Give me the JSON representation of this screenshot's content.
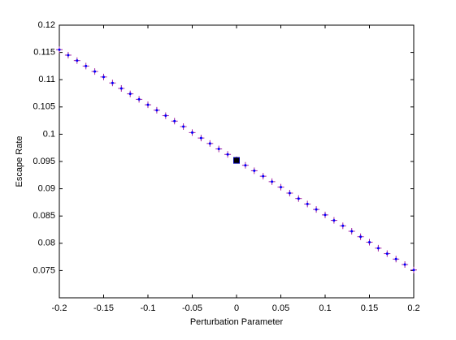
{
  "chart_data": {
    "type": "scatter",
    "xlabel": "Perturbation Parameter",
    "ylabel": "Escape Rate",
    "xlim": [
      -0.2,
      0.2
    ],
    "ylim": [
      0.07,
      0.12
    ],
    "xticks": [
      -0.2,
      -0.15,
      -0.1,
      -0.05,
      0,
      0.05,
      0.1,
      0.15,
      0.2
    ],
    "yticks": [
      0.075,
      0.08,
      0.085,
      0.09,
      0.095,
      0.1,
      0.105,
      0.11,
      0.115,
      0.12
    ],
    "series": [
      {
        "color": "#a020a0",
        "marker": "plus",
        "x": [
          -0.2,
          -0.19,
          -0.18,
          -0.17,
          -0.16,
          -0.15,
          -0.14,
          -0.13,
          -0.12,
          -0.11,
          -0.1,
          -0.09,
          -0.08,
          -0.07,
          -0.06,
          -0.05,
          -0.04,
          -0.03,
          -0.02,
          -0.01,
          0,
          0.01,
          0.02,
          0.03,
          0.04,
          0.05,
          0.06,
          0.07,
          0.08,
          0.09,
          0.1,
          0.11,
          0.12,
          0.13,
          0.14,
          0.15,
          0.16,
          0.17,
          0.18,
          0.19,
          0.2
        ],
        "values": [
          0.1155,
          0.1145,
          0.1135,
          0.1125,
          0.1115,
          0.1105,
          0.1094,
          0.1084,
          0.1074,
          0.1064,
          0.1054,
          0.1044,
          0.1034,
          0.1024,
          0.1014,
          0.1003,
          0.0993,
          0.0983,
          0.0973,
          0.0963,
          0.0953,
          0.0943,
          0.0933,
          0.0923,
          0.0913,
          0.0903,
          0.0892,
          0.0882,
          0.0872,
          0.0862,
          0.0852,
          0.0842,
          0.0832,
          0.0822,
          0.0812,
          0.0802,
          0.0791,
          0.0781,
          0.0771,
          0.0761,
          0.0751
        ]
      },
      {
        "color": "#000000",
        "marker": "square",
        "x": [
          0
        ],
        "values": [
          0.0952
        ]
      }
    ]
  }
}
